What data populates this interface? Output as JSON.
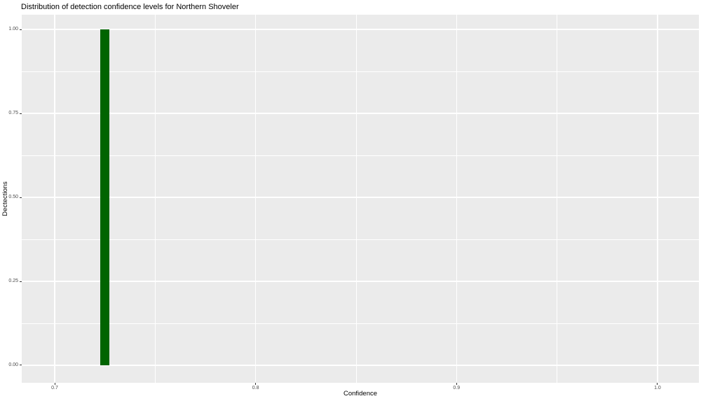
{
  "chart_data": {
    "type": "bar",
    "subtype": "histogram",
    "title": "Distribution of detection confidence levels for Northern Shoveler",
    "xlabel": "Confidence",
    "ylabel": "Dectections",
    "bars": [
      {
        "x_center": 0.7249,
        "bin_width": 0.0046,
        "count": 1.0
      }
    ],
    "x_axis": {
      "range": [
        0.6836,
        1.0206
      ],
      "ticks": [
        0.7,
        0.8,
        0.9,
        1.0
      ],
      "tick_labels": [
        "0.7",
        "0.8",
        "0.9",
        "1.0"
      ],
      "minor_ticks": [
        0.75,
        0.85,
        0.95
      ]
    },
    "y_axis": {
      "range": [
        -0.0521,
        1.0438
      ],
      "ticks": [
        0.0,
        0.25,
        0.5,
        0.75,
        1.0
      ],
      "tick_labels": [
        "0.00",
        "0.25",
        "0.50",
        "0.75",
        "1.00"
      ],
      "minor_ticks": [
        0.125,
        0.375,
        0.625,
        0.875
      ]
    },
    "grid": "on",
    "legend": "none",
    "colors": {
      "bar_fill": "#006400",
      "panel_background": "#EBEBEB",
      "grid_major": "#FFFFFF",
      "grid_minor": "#FFFFFF",
      "tick_label": "#4D4D4D",
      "tick_mark": "#333333",
      "title_text": "#000000",
      "figure_background": "#FFFFFF"
    }
  }
}
